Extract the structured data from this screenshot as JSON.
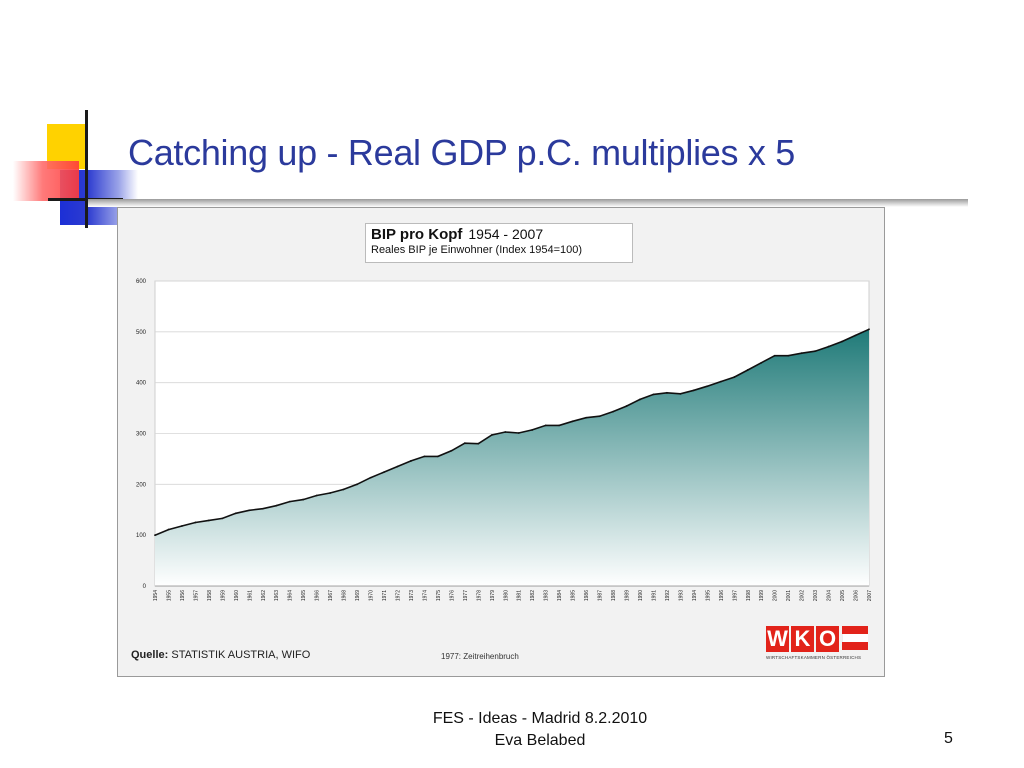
{
  "slide": {
    "title": "Catching up - Real GDP p.C. multiplies x 5",
    "footer_line1": "FES - Ideas - Madrid 8.2.2010",
    "footer_line2": "Eva Belabed",
    "page_number": "5"
  },
  "colors": {
    "title": "#2b3a9c",
    "area_top": "#1f7a78",
    "area_bottom": "#ffffff",
    "wko_red": "#e2231a"
  },
  "chart_data": {
    "type": "area",
    "title": "BIP pro Kopf",
    "title_years": "1954 - 2007",
    "subtitle": "Reales BIP je Einwohner (Index 1954=100)",
    "source_label": "Quelle:",
    "source_text": "STATISTIK AUSTRIA, WIFO",
    "note": "1977: Zeitreihenbruch",
    "xlabel": "",
    "ylabel": "",
    "ylim": [
      0,
      600
    ],
    "yticks": [
      0,
      100,
      200,
      300,
      400,
      500,
      600
    ],
    "grid": true,
    "x": [
      "1954",
      "1955",
      "1956",
      "1957",
      "1958",
      "1959",
      "1960",
      "1961",
      "1962",
      "1963",
      "1964",
      "1965",
      "1966",
      "1967",
      "1968",
      "1969",
      "1970",
      "1971",
      "1972",
      "1973",
      "1974",
      "1975",
      "1976",
      "1977",
      "1978",
      "1979",
      "1980",
      "1981",
      "1982",
      "1983",
      "1984",
      "1985",
      "1986",
      "1987",
      "1988",
      "1989",
      "1990",
      "1991",
      "1992",
      "1993",
      "1994",
      "1995",
      "1996",
      "1997",
      "1998",
      "1999",
      "2000",
      "2001",
      "2002",
      "2003",
      "2004",
      "2005",
      "2006",
      "2007"
    ],
    "values": [
      100,
      111,
      118,
      125,
      129,
      133,
      143,
      149,
      152,
      158,
      166,
      170,
      178,
      183,
      190,
      200,
      213,
      224,
      235,
      246,
      255,
      255,
      266,
      281,
      280,
      297,
      303,
      301,
      307,
      316,
      316,
      324,
      331,
      334,
      343,
      354,
      367,
      377,
      380,
      378,
      385,
      393,
      402,
      411,
      425,
      439,
      453,
      453,
      458,
      462,
      471,
      481,
      493,
      505
    ]
  },
  "logo": {
    "letters": [
      "W",
      "K",
      "O"
    ],
    "subtitle": "WIRTSCHAFTSKAMMERN ÖSTERREICHS"
  }
}
